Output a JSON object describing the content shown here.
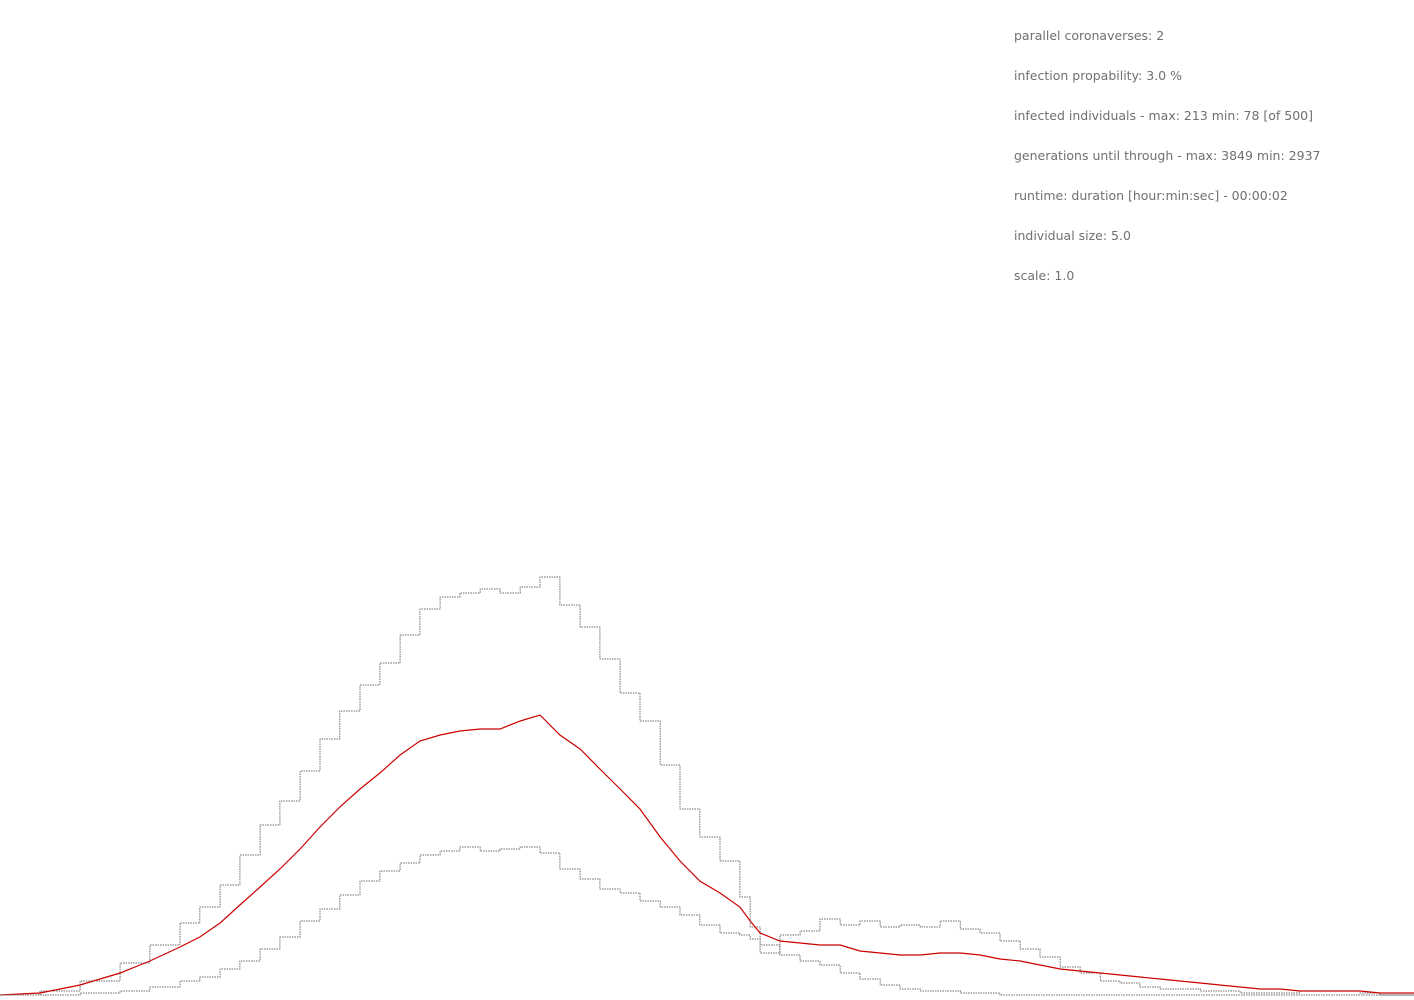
{
  "info": {
    "parallel": "parallel coronaverses: 2",
    "probability": "infection propability: 3.0 %",
    "infected": "infected individuals - max: 213 min: 78 [of 500]",
    "generations": "generations until through - max: 3849 min: 2937",
    "runtime": "runtime: duration [hour:min:sec] - 00:00:02",
    "size": "individual size: 5.0",
    "scale": "scale: 1.0"
  },
  "colors": {
    "background": "#ffffff",
    "text": "#707070",
    "mean_line": "#cc0000",
    "bound_lines": "#6e6e6e"
  },
  "chart_data": {
    "type": "line",
    "title": "",
    "xlabel": "",
    "ylabel": "",
    "xlim": [
      0,
      3849
    ],
    "ylim": [
      0,
      500
    ],
    "grid": false,
    "legend": "none",
    "series": [
      {
        "role": "max",
        "color": "#6e6e6e",
        "style": "step",
        "x": [
          0,
          109,
          218,
          327,
          408,
          490,
          544,
          599,
          653,
          708,
          762,
          817,
          871,
          925,
          980,
          1034,
          1089,
          1143,
          1198,
          1252,
          1307,
          1361,
          1416,
          1470,
          1524,
          1579,
          1633,
          1688,
          1742,
          1797,
          1851,
          1905,
          1960,
          2014,
          2042,
          2069,
          2123,
          2178,
          2232,
          2287,
          2341,
          2396,
          2450,
          2505,
          2559,
          2614,
          2668,
          2722,
          2777,
          2831,
          2886,
          2940,
          2995,
          3049,
          3103,
          3158,
          3212,
          3267,
          3321,
          3376,
          3430,
          3484,
          3539,
          3593,
          3648,
          3702,
          3756,
          3849
        ],
        "y": [
          1,
          3,
          8,
          17,
          26,
          37,
          45,
          56,
          71,
          86,
          98,
          113,
          129,
          143,
          156,
          167,
          181,
          194,
          200,
          202,
          204,
          202,
          205,
          210,
          196,
          185,
          169,
          152,
          138,
          116,
          94,
          80,
          68,
          50,
          35,
          22,
          31,
          33,
          39,
          36,
          38,
          35,
          36,
          35,
          38,
          34,
          32,
          28,
          24,
          20,
          15,
          12,
          8,
          7,
          5,
          4,
          4,
          3,
          3,
          2,
          2,
          2,
          3,
          3,
          3,
          2,
          1,
          1
        ]
      },
      {
        "role": "mean",
        "color": "#cc0000",
        "style": "line",
        "x": [
          0,
          109,
          218,
          327,
          408,
          490,
          544,
          599,
          653,
          708,
          762,
          817,
          871,
          925,
          980,
          1034,
          1089,
          1143,
          1198,
          1252,
          1307,
          1361,
          1416,
          1470,
          1524,
          1579,
          1633,
          1688,
          1742,
          1797,
          1851,
          1905,
          1960,
          2014,
          2042,
          2069,
          2123,
          2178,
          2232,
          2287,
          2341,
          2396,
          2450,
          2505,
          2559,
          2614,
          2668,
          2722,
          2777,
          2831,
          2886,
          2940,
          2995,
          3049,
          3103,
          3158,
          3212,
          3267,
          3321,
          3376,
          3430,
          3484,
          3539,
          3593,
          3648,
          3702,
          3756,
          3849
        ],
        "y": [
          1,
          2,
          6,
          12,
          18,
          25,
          30,
          37,
          46,
          55,
          64,
          74,
          85,
          95,
          104,
          112,
          121,
          128,
          131,
          133,
          134,
          134,
          138,
          141,
          131,
          124,
          114,
          104,
          94,
          80,
          68,
          58,
          52,
          45,
          38,
          32,
          28,
          27,
          26,
          26,
          23,
          22,
          21,
          21,
          22,
          22,
          21,
          19,
          18,
          16,
          14,
          13,
          12,
          11,
          10,
          9,
          8,
          7,
          6,
          5,
          4,
          4,
          3,
          3,
          3,
          3,
          2,
          2
        ]
      },
      {
        "role": "min",
        "color": "#6e6e6e",
        "style": "step",
        "x": [
          0,
          109,
          218,
          327,
          408,
          490,
          544,
          599,
          653,
          708,
          762,
          817,
          871,
          925,
          980,
          1034,
          1089,
          1143,
          1198,
          1252,
          1307,
          1361,
          1416,
          1470,
          1524,
          1579,
          1633,
          1688,
          1742,
          1797,
          1851,
          1905,
          1960,
          2014,
          2042,
          2069,
          2123,
          2178,
          2232,
          2287,
          2341,
          2396,
          2450,
          2505,
          2559,
          2614,
          2668,
          2722,
          2777,
          2831,
          2886,
          2940,
          2995,
          3049,
          3103,
          3158,
          3212,
          3267,
          3321,
          3376,
          3430,
          3484,
          3539,
          3593,
          3648,
          3702,
          3756,
          3849
        ],
        "y": [
          1,
          1,
          2,
          3,
          5,
          8,
          10,
          14,
          18,
          24,
          30,
          38,
          44,
          51,
          58,
          63,
          67,
          71,
          73,
          75,
          73,
          74,
          75,
          72,
          64,
          59,
          54,
          52,
          48,
          45,
          41,
          36,
          32,
          31,
          29,
          26,
          21,
          18,
          16,
          12,
          9,
          6,
          4,
          3,
          3,
          2,
          2,
          1,
          1,
          1,
          1,
          1,
          1,
          1,
          1,
          1,
          1,
          1,
          1,
          1,
          1,
          1,
          1,
          1,
          1,
          1,
          1,
          1
        ]
      }
    ]
  }
}
